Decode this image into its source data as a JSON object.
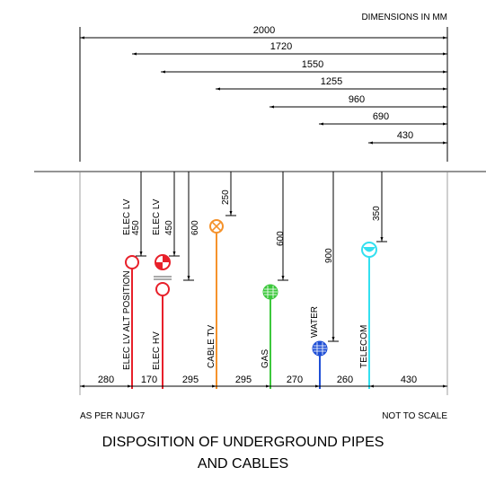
{
  "header": {
    "units_note": "DIMENSIONS IN MM"
  },
  "top_dimensions": [
    {
      "value": "2000"
    },
    {
      "value": "1720"
    },
    {
      "value": "1550"
    },
    {
      "value": "1255"
    },
    {
      "value": "960"
    },
    {
      "value": "690"
    },
    {
      "value": "430"
    }
  ],
  "bottom_dimensions": [
    {
      "value": "280"
    },
    {
      "value": "170"
    },
    {
      "value": "295"
    },
    {
      "value": "295"
    },
    {
      "value": "270"
    },
    {
      "value": "260"
    },
    {
      "value": "430"
    }
  ],
  "depth_dimensions": [
    {
      "value": "450"
    },
    {
      "value": "450"
    },
    {
      "value": "600"
    },
    {
      "value": "250"
    },
    {
      "value": "600"
    },
    {
      "value": "900"
    },
    {
      "value": "350"
    }
  ],
  "services": [
    {
      "label": "ELEC LV ALT POSITION",
      "color": "#e8202a"
    },
    {
      "label": "ELEC HV",
      "color": "#e8202a"
    },
    {
      "label": "ELEC LV",
      "color": "#e8202a"
    },
    {
      "label": "CABLE TV",
      "color": "#f5922b"
    },
    {
      "label": "GAS",
      "color": "#3cc83c"
    },
    {
      "label": "WATER",
      "color": "#1f4fd6"
    },
    {
      "label": "TELECOM",
      "color": "#33e0f0"
    }
  ],
  "notes": {
    "left": "AS PER NJUG7",
    "right": "NOT TO SCALE"
  },
  "title": {
    "line1": "DISPOSITION OF UNDERGROUND PIPES",
    "line2": "AND CABLES"
  }
}
